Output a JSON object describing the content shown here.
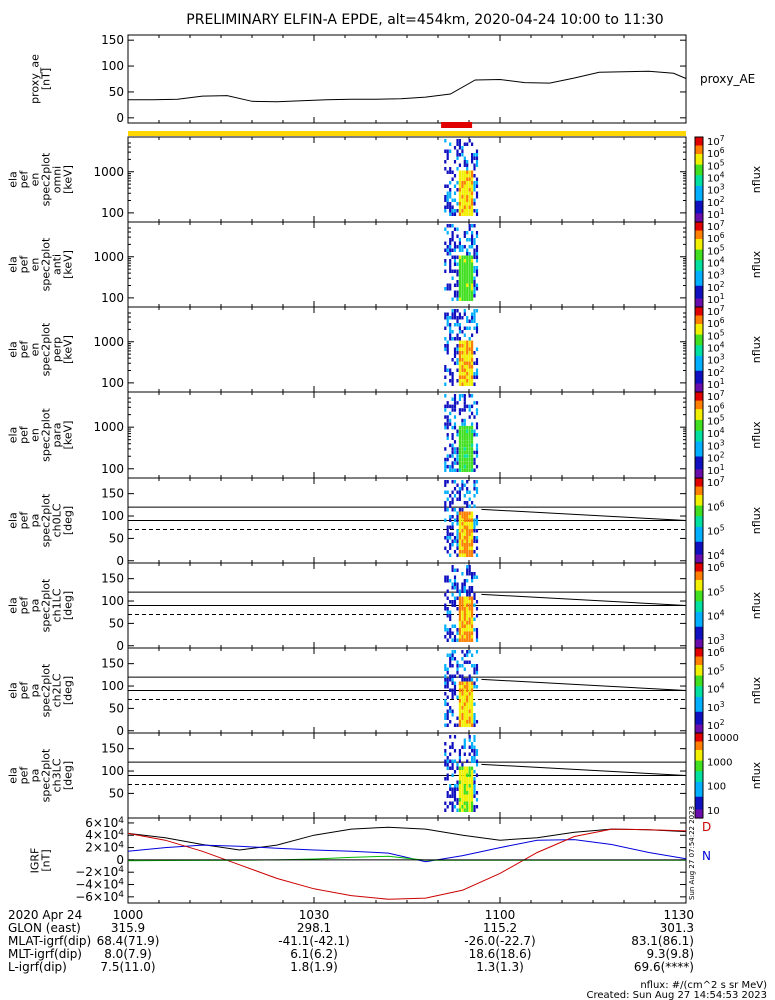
{
  "title": "PRELIMINARY ELFIN-A EPDE, alt=454km, 2020-04-24 10:00 to 11:30",
  "colors": {
    "bar_yellow": "#ffd700",
    "science_zone_red": "#e00000",
    "field_x": "#000000",
    "field_y": "#0000dd",
    "field_z": "#cc0000",
    "field_model": "#00bb00"
  },
  "chart_data": [
    {
      "type": "line",
      "name": "proxy_ae",
      "ylabel_lines": [
        "proxy_ae",
        "[nT]"
      ],
      "legend": "proxy_AE",
      "ylim": [
        -10,
        160
      ],
      "yticks": [
        "150",
        "100",
        "50",
        "0"
      ],
      "x": [
        0,
        4,
        8,
        12,
        16,
        20,
        24,
        28,
        32,
        36,
        40,
        44,
        48,
        52,
        56,
        60,
        64,
        68,
        72,
        76,
        80,
        84,
        88,
        90
      ],
      "values": [
        35,
        35,
        36,
        42,
        43,
        32,
        31,
        33,
        35,
        36,
        36,
        37,
        40,
        46,
        73,
        74,
        68,
        67,
        77,
        88,
        89,
        90,
        86,
        76
      ]
    },
    {
      "type": "heatmap",
      "name": "spec2plot omni",
      "ylabel_lines": [
        "ela",
        "pef",
        "en",
        "spec2plot",
        "omni",
        "[keV]"
      ],
      "yscale": "log",
      "yticks": [
        "1000",
        "100"
      ],
      "colorbar": {
        "label": "nflux",
        "ticks": [
          "10^7",
          "10^6",
          "10^5",
          "10^4",
          "10^3",
          "10^2",
          "10^1"
        ]
      }
    },
    {
      "type": "heatmap",
      "name": "spec2plot anti",
      "ylabel_lines": [
        "ela",
        "pef",
        "en",
        "spec2plot",
        "anti",
        "[keV]"
      ],
      "yscale": "log",
      "yticks": [
        "1000",
        "100"
      ],
      "colorbar": {
        "label": "nflux",
        "ticks": [
          "10^7",
          "10^6",
          "10^5",
          "10^4",
          "10^3",
          "10^2",
          "10^1"
        ]
      }
    },
    {
      "type": "heatmap",
      "name": "spec2plot perp",
      "ylabel_lines": [
        "ela",
        "pef",
        "en",
        "spec2plot",
        "perp",
        "[keV]"
      ],
      "yscale": "log",
      "yticks": [
        "1000",
        "100"
      ],
      "colorbar": {
        "label": "nflux",
        "ticks": [
          "10^7",
          "10^6",
          "10^5",
          "10^4",
          "10^3",
          "10^2",
          "10^1"
        ]
      }
    },
    {
      "type": "heatmap",
      "name": "spec2plot para",
      "ylabel_lines": [
        "ela",
        "pef",
        "en",
        "spec2plot",
        "para",
        "[keV]"
      ],
      "yscale": "log",
      "yticks": [
        "1000",
        "100"
      ],
      "colorbar": {
        "label": "nflux",
        "ticks": [
          "10^7",
          "10^6",
          "10^5",
          "10^4",
          "10^3",
          "10^2",
          "10^1"
        ]
      }
    },
    {
      "type": "heatmap",
      "name": "spec2plot ch0LC",
      "ylabel_lines": [
        "ela",
        "pef",
        "pa",
        "spec2plot",
        "ch0LC",
        "[deg]"
      ],
      "ylim": [
        -5,
        185
      ],
      "yticks": [
        "150",
        "100",
        "50",
        "0"
      ],
      "colorbar": {
        "label": "nflux",
        "ticks": [
          "10^7",
          "10^6",
          "10^5",
          "10^4"
        ]
      }
    },
    {
      "type": "heatmap",
      "name": "spec2plot ch1LC",
      "ylabel_lines": [
        "ela",
        "pef",
        "pa",
        "spec2plot",
        "ch1LC",
        "[deg]"
      ],
      "ylim": [
        -5,
        185
      ],
      "yticks": [
        "150",
        "100",
        "50",
        "0"
      ],
      "colorbar": {
        "label": "nflux",
        "ticks": [
          "10^6",
          "10^5",
          "10^4",
          "10^3"
        ]
      }
    },
    {
      "type": "heatmap",
      "name": "spec2plot ch2LC",
      "ylabel_lines": [
        "ela",
        "pef",
        "pa",
        "spec2plot",
        "ch2LC",
        "[deg]"
      ],
      "ylim": [
        -5,
        185
      ],
      "yticks": [
        "150",
        "100",
        "50",
        "0"
      ],
      "colorbar": {
        "label": "nflux",
        "ticks": [
          "10^6",
          "10^5",
          "10^4",
          "10^3",
          "10^2"
        ]
      }
    },
    {
      "type": "heatmap",
      "name": "spec2plot ch3LC",
      "ylabel_lines": [
        "ela",
        "pef",
        "pa",
        "spec2plot",
        "ch3LC",
        "[deg]"
      ],
      "ylim": [
        -5,
        185
      ],
      "yticks": [
        "150",
        "100",
        "50"
      ],
      "colorbar": {
        "label": "nflux",
        "ticks": [
          "10000",
          "1000",
          "100",
          "10"
        ]
      }
    },
    {
      "type": "line",
      "name": "IGRF",
      "ylabel_lines": [
        "IGRF",
        "[nT]"
      ],
      "ylim": [
        -70000,
        68000
      ],
      "yticks": [
        "6×10^4",
        "4×10^4",
        "2×10^4",
        "0",
        "−2×10^4",
        "−4×10^4",
        "−6×10^4"
      ],
      "right_labels": [
        "D",
        "N"
      ],
      "series": [
        {
          "color": "#000000",
          "x": [
            0,
            6,
            12,
            18,
            24,
            30,
            36,
            42,
            48,
            54,
            60,
            66,
            72,
            78,
            84,
            90
          ],
          "values": [
            43000,
            36000,
            25000,
            16000,
            24000,
            40000,
            50000,
            53000,
            50000,
            40000,
            32000,
            36000,
            45000,
            50000,
            49000,
            46000
          ]
        },
        {
          "color": "#0000dd",
          "x": [
            0,
            6,
            12,
            18,
            24,
            30,
            36,
            42,
            48,
            54,
            60,
            66,
            72,
            78,
            84,
            90
          ],
          "values": [
            14000,
            20000,
            24000,
            22000,
            19000,
            16000,
            14000,
            11000,
            -3000,
            7000,
            20000,
            32000,
            33000,
            25000,
            12000,
            2000
          ]
        },
        {
          "color": "#cc0000",
          "x": [
            0,
            6,
            12,
            18,
            24,
            30,
            36,
            42,
            48,
            54,
            60,
            66,
            72,
            78,
            84,
            90
          ],
          "values": [
            43000,
            32000,
            14000,
            -8000,
            -30000,
            -47000,
            -58000,
            -64000,
            -62000,
            -49000,
            -22000,
            12000,
            38000,
            50000,
            49000,
            47000
          ]
        },
        {
          "color": "#00bb00",
          "x": [
            0,
            6,
            12,
            18,
            24,
            30,
            36,
            42,
            48,
            54,
            60,
            66,
            72,
            78,
            84,
            90
          ],
          "values": [
            -1500,
            -1000,
            -800,
            -500,
            0,
            1500,
            4000,
            6000,
            -500,
            -500,
            -500,
            -500,
            -500,
            -500,
            -500,
            -500
          ]
        }
      ]
    }
  ],
  "timestamp_vertical": "Sun Aug 27 07:54:22 2023",
  "footer": {
    "row_labels": [
      "2020 Apr 24",
      "GLON (east)",
      "MLAT-igrf(dip)",
      "MLT-igrf(dip)",
      "L-igrf(dip)"
    ],
    "columns": [
      {
        "time": "1000",
        "values": [
          "315.9",
          "68.4(71.9)",
          "8.0(7.9)",
          "7.5(11.0)"
        ]
      },
      {
        "time": "1030",
        "values": [
          "298.1",
          "-41.1(-42.1)",
          "6.1(6.2)",
          "1.8(1.9)"
        ]
      },
      {
        "time": "1100",
        "values": [
          "115.2",
          "-26.0(-22.7)",
          "18.6(18.6)",
          "1.3(1.3)"
        ]
      },
      {
        "time": "1130",
        "values": [
          "301.3",
          "83.1(86.1)",
          "9.3(9.8)",
          "69.6(****)"
        ]
      }
    ],
    "units_note": "nflux: #/(cm^2 s sr MeV)",
    "created": "Created: Sun Aug 27 14:54:53 2023"
  }
}
